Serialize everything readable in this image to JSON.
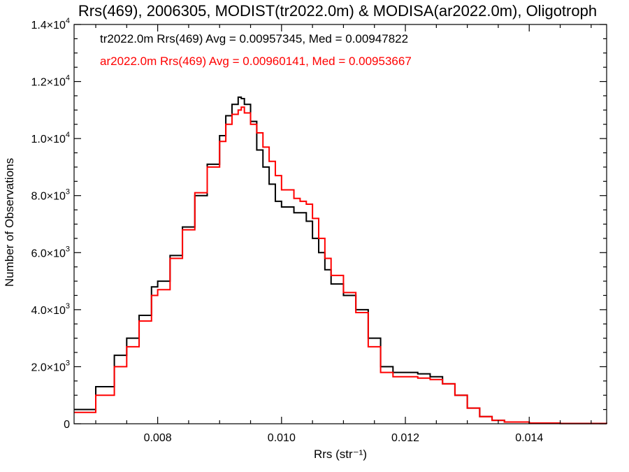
{
  "chart_data": {
    "type": "line",
    "title": "Rrs(469), 2006305, MODIST(tr2022.0m) & MODISA(ar2022.0m), Oligotroph",
    "xlabel": "Rrs (str⁻¹)",
    "ylabel": "Number of Observations",
    "xlim": [
      0.00665,
      0.01525
    ],
    "ylim": [
      0,
      14000
    ],
    "x_ticks": [
      {
        "value": 0.008,
        "label": "0.008"
      },
      {
        "value": 0.01,
        "label": "0.010"
      },
      {
        "value": 0.012,
        "label": "0.012"
      },
      {
        "value": 0.014,
        "label": "0.014"
      }
    ],
    "y_ticks": [
      {
        "value": 0,
        "mant": "0",
        "exp": ""
      },
      {
        "value": 2000,
        "mant": "2.0×10",
        "exp": "3"
      },
      {
        "value": 4000,
        "mant": "4.0×10",
        "exp": "3"
      },
      {
        "value": 6000,
        "mant": "6.0×10",
        "exp": "3"
      },
      {
        "value": 8000,
        "mant": "8.0×10",
        "exp": "3"
      },
      {
        "value": 10000,
        "mant": "1.0×10",
        "exp": "4"
      },
      {
        "value": 12000,
        "mant": "1.2×10",
        "exp": "4"
      },
      {
        "value": 14000,
        "mant": "1.4×10",
        "exp": "4"
      }
    ],
    "grid": false,
    "legend_position": "top-left",
    "series": [
      {
        "legend": "tr2022.0m Rrs(469) Avg = 0.00957345, Med = 0.00947822",
        "color": "#000000",
        "x": [
          0.00665,
          0.007,
          0.0073,
          0.0075,
          0.0077,
          0.0079,
          0.008,
          0.0082,
          0.0084,
          0.0086,
          0.0088,
          0.009,
          0.0091,
          0.0092,
          0.0093,
          0.00935,
          0.0094,
          0.0095,
          0.0096,
          0.0097,
          0.0098,
          0.0099,
          0.01,
          0.0102,
          0.0103,
          0.0104,
          0.0105,
          0.0106,
          0.0107,
          0.0108,
          0.011,
          0.0112,
          0.0114,
          0.0116,
          0.0118,
          0.012,
          0.0122,
          0.0124,
          0.0126,
          0.0128,
          0.013,
          0.0132,
          0.0134,
          0.0136,
          0.014,
          0.0145,
          0.01525
        ],
        "y": [
          500,
          1300,
          2400,
          3000,
          3800,
          4800,
          5000,
          5900,
          6900,
          8000,
          9100,
          10100,
          10800,
          11200,
          11450,
          11400,
          11200,
          10600,
          9600,
          9000,
          8400,
          7800,
          7600,
          7400,
          7400,
          7100,
          6500,
          6000,
          5400,
          4900,
          4500,
          4000,
          3000,
          2000,
          1800,
          1800,
          1750,
          1650,
          1400,
          1000,
          550,
          250,
          120,
          60,
          25,
          8,
          0
        ]
      },
      {
        "legend": "ar2022.0m Rrs(469) Avg = 0.00960141, Med = 0.00953667",
        "color": "#ff0000",
        "x": [
          0.00665,
          0.007,
          0.0073,
          0.0075,
          0.0077,
          0.0079,
          0.008,
          0.0082,
          0.0084,
          0.0086,
          0.0088,
          0.009,
          0.0091,
          0.0092,
          0.0093,
          0.00935,
          0.0094,
          0.0095,
          0.0096,
          0.0097,
          0.0098,
          0.0099,
          0.01,
          0.0102,
          0.0103,
          0.0104,
          0.0105,
          0.0106,
          0.0107,
          0.0108,
          0.011,
          0.0112,
          0.0114,
          0.0116,
          0.0118,
          0.012,
          0.0122,
          0.0124,
          0.0126,
          0.0128,
          0.013,
          0.0132,
          0.0134,
          0.0136,
          0.014,
          0.0145,
          0.01525
        ],
        "y": [
          400,
          1000,
          2000,
          2700,
          3600,
          4500,
          4700,
          5800,
          6800,
          8100,
          9000,
          9900,
          10500,
          10850,
          11000,
          11100,
          10900,
          10500,
          10200,
          9700,
          9200,
          8700,
          8200,
          7900,
          7800,
          7700,
          7200,
          6500,
          5800,
          5200,
          4600,
          3900,
          2700,
          1800,
          1650,
          1650,
          1600,
          1550,
          1400,
          1000,
          550,
          250,
          120,
          60,
          25,
          8,
          0
        ]
      }
    ]
  }
}
